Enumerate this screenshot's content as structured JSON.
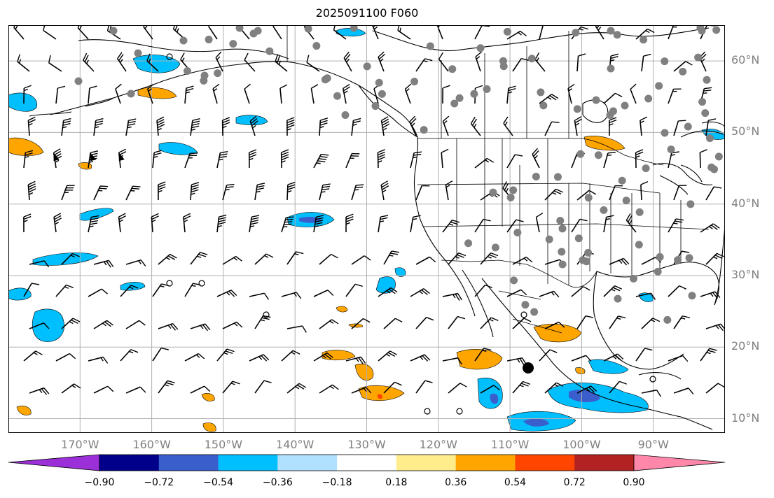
{
  "title": "2025091100 F060",
  "map": {
    "lat_labels": [
      "60°N",
      "50°N",
      "40°N",
      "30°N",
      "20°N",
      "10°N"
    ],
    "lon_labels": [
      "170°W",
      "160°W",
      "150°W",
      "140°W",
      "130°W",
      "120°W",
      "110°W",
      "100°W",
      "90°W"
    ],
    "lat_lines": [
      60,
      50,
      40,
      30,
      20,
      10
    ],
    "lon_lines": [
      -170,
      -160,
      -150,
      -140,
      -130,
      -120,
      -110,
      -100,
      -90
    ],
    "extent": {
      "lon_min": -180,
      "lon_max": -80,
      "lat_min": 8,
      "lat_max": 65
    },
    "gridline_color": "#b0b0b0",
    "land_outline_color": "#000000",
    "station_marker_color": "#808080",
    "wind_barbs": "black"
  },
  "colorbar": {
    "ticks": [
      "−0.90",
      "−0.72",
      "−0.54",
      "−0.36",
      "−0.18",
      "0.18",
      "0.36",
      "0.54",
      "0.72",
      "0.90"
    ],
    "colors": [
      "#9b30d9",
      "#00008b",
      "#3a5fcd",
      "#00bfff",
      "#b0e2ff",
      "#ffffff",
      "#ffec8b",
      "#ffa500",
      "#ff4500",
      "#b22222",
      "#ff88aa"
    ]
  }
}
